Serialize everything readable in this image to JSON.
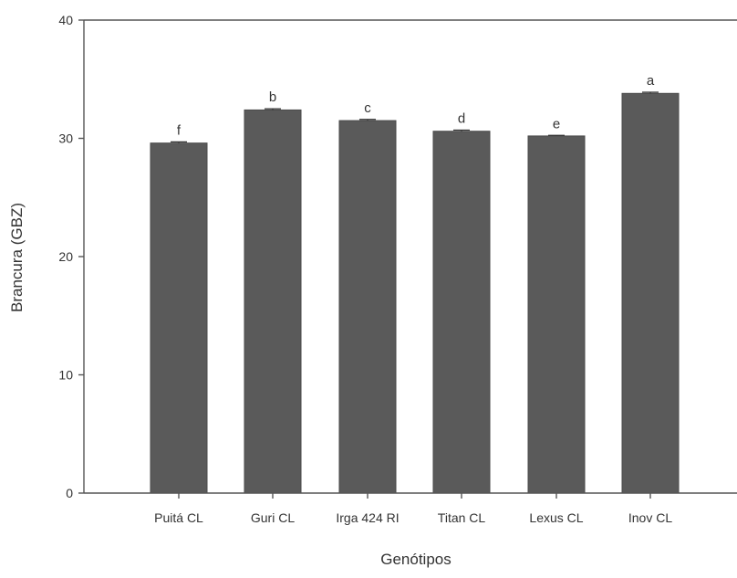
{
  "chart_data": {
    "type": "bar",
    "title": "",
    "xlabel": "Genótipos",
    "ylabel": "Brancura (GBZ)",
    "ylim": [
      0,
      40
    ],
    "yticks": [
      0,
      10,
      20,
      30,
      40
    ],
    "grid": false,
    "categories": [
      "Puitá CL",
      "Guri CL",
      "Irga 424 RI",
      "Titan CL",
      "Lexus CL",
      "Inov CL"
    ],
    "values": [
      29.6,
      32.4,
      31.5,
      30.6,
      30.2,
      33.8
    ],
    "errors": [
      0.1,
      0.1,
      0.1,
      0.1,
      0.05,
      0.1
    ],
    "significance_letters": [
      "f",
      "b",
      "c",
      "d",
      "e",
      "a"
    ],
    "colors": {
      "bar_fill": "#5a5a5a",
      "axis": "#555555",
      "text": "#333333"
    }
  }
}
